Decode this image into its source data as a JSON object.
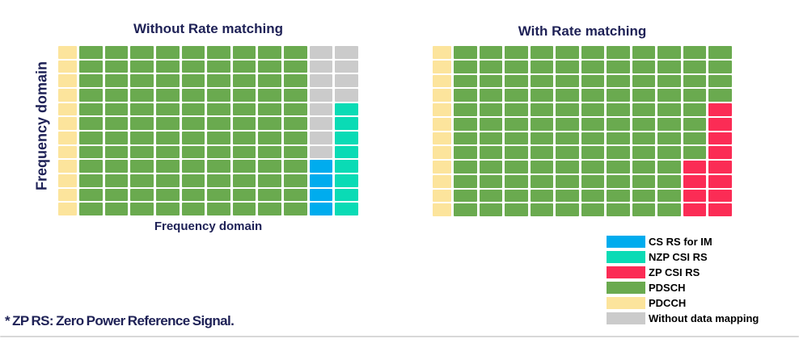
{
  "colors": {
    "title_text": "#1e2156",
    "axis_text": "#1e2156",
    "legend_text": "#000000",
    "divider": "#d8d8d8",
    "grid_gap": "#ffffff"
  },
  "cell_types": {
    "Y": {
      "name": "PDCCH",
      "color": "#fce49c"
    },
    "G": {
      "name": "PDSCH",
      "color": "#6aaa4f"
    },
    "N": {
      "name": "Without data mapping",
      "color": "#cbcbcb"
    },
    "B": {
      "name": "CS RS for IM",
      "color": "#00acee"
    },
    "C": {
      "name": "NZP CSI RS",
      "color": "#0adbb5"
    },
    "R": {
      "name": "ZP CSI RS",
      "color": "#fb2c55"
    }
  },
  "left_panel": {
    "title": "Without Rate matching",
    "y_axis_label": "Frequency domain",
    "x_axis_label": "Frequency domain",
    "grid_rows": [
      "YGGGGGGGGGNN",
      "YGGGGGGGGGNN",
      "YGGGGGGGGGNN",
      "YGGGGGGGGGNN",
      "YGGGGGGGGGNC",
      "YGGGGGGGGGNC",
      "YGGGGGGGGGNC",
      "YGGGGGGGGGNC",
      "YGGGGGGGGGBC",
      "YGGGGGGGGGBC",
      "YGGGGGGGGGBC",
      "YGGGGGGGGGBC"
    ]
  },
  "right_panel": {
    "title": "With Rate matching",
    "grid_rows": [
      "YGGGGGGGGGGG",
      "YGGGGGGGGGGG",
      "YGGGGGGGGGGG",
      "YGGGGGGGGGGG",
      "YGGGGGGGGGGR",
      "YGGGGGGGGGGR",
      "YGGGGGGGGGGR",
      "YGGGGGGGGGGR",
      "YGGGGGGGGGRR",
      "YGGGGGGGGGRR",
      "YGGGGGGGGGRR",
      "YGGGGGGGGGRR"
    ]
  },
  "legend": {
    "items": [
      {
        "key": "B",
        "label": "CS RS for IM",
        "color": "#00acee"
      },
      {
        "key": "C",
        "label": "NZP CSI RS",
        "color": "#0adbb5"
      },
      {
        "key": "R",
        "label": "ZP CSI RS",
        "color": "#fb2c55"
      },
      {
        "key": "G",
        "label": "PDSCH",
        "color": "#6aaa4f"
      },
      {
        "key": "Y",
        "label": "PDCCH",
        "color": "#fce49c"
      },
      {
        "key": "N",
        "label": "Without data mapping",
        "color": "#cbcbcb"
      }
    ]
  },
  "footnote": "* ZP RS: Zero Power Reference Signal."
}
